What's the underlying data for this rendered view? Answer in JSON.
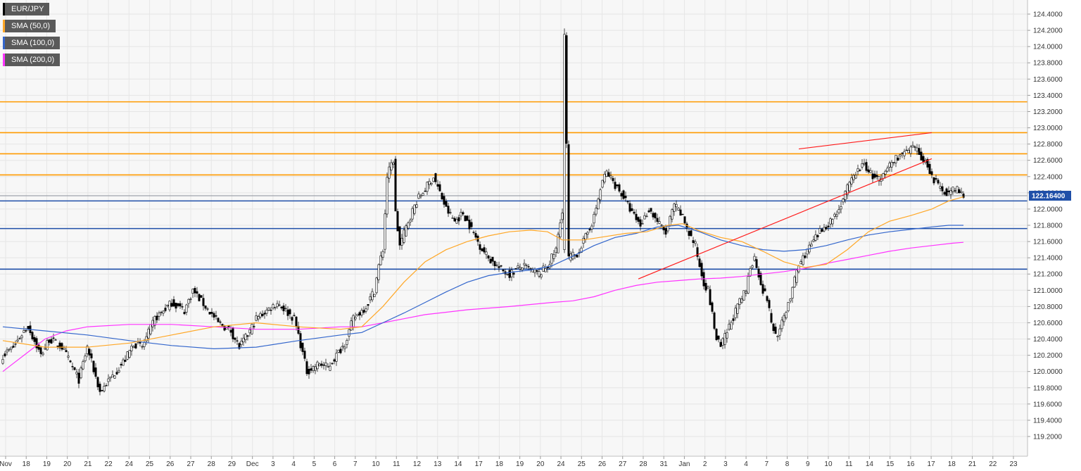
{
  "colors": {
    "background": "#f7f7f7",
    "grid": "#e6e6e6",
    "resistance": "#ff9a00",
    "support": "#1f4fa8",
    "trend": "#ff1a1a",
    "sma50": "#ffa726",
    "sma100": "#3366cc",
    "sma200": "#ff33ff",
    "bull": "#ffffff",
    "bear": "#000000",
    "priceBadge": "#1f4fa8",
    "currentPrice": "#8a8f99"
  },
  "chart_data": {
    "type": "candlestick",
    "symbol": "EUR/JPY",
    "legend": [
      {
        "label": "EUR/JPY",
        "color": "#000000"
      },
      {
        "label": "SMA (50,0)",
        "color": "#ffa726"
      },
      {
        "label": "SMA (100,0)",
        "color": "#3366cc"
      },
      {
        "label": "SMA (200,0)",
        "color": "#ff33ff"
      }
    ],
    "legend_position": "top-left",
    "grid": true,
    "ylim": [
      119.2,
      124.5
    ],
    "y_ticks": [
      "124.4000",
      "124.2000",
      "124.0000",
      "123.8000",
      "123.6000",
      "123.4000",
      "123.2000",
      "123.0000",
      "122.8000",
      "122.6000",
      "122.4000",
      "122.2000",
      "122.0000",
      "121.8000",
      "121.6000",
      "121.4000",
      "121.2000",
      "121.0000",
      "120.8000",
      "120.6000",
      "120.4000",
      "120.2000",
      "120.0000",
      "119.8000",
      "119.6000",
      "119.4000",
      "119.2000"
    ],
    "x_ticks": [
      "Nov",
      "18",
      "19",
      "20",
      "21",
      "22",
      "24",
      "25",
      "26",
      "27",
      "28",
      "29",
      "Dec",
      "3",
      "4",
      "5",
      "6",
      "7",
      "10",
      "11",
      "12",
      "13",
      "14",
      "17",
      "18",
      "19",
      "20",
      "24",
      "25",
      "26",
      "27",
      "28",
      "31",
      "Jan",
      "2",
      "3",
      "4",
      "7",
      "8",
      "9",
      "10",
      "11",
      "14",
      "15",
      "16",
      "17",
      "18",
      "21",
      "22",
      "23"
    ],
    "current_price": "122.16400",
    "current_price_value": 122.164,
    "resistance_levels": [
      123.32,
      122.94,
      122.68,
      122.42
    ],
    "support_levels": [
      122.1,
      121.76,
      121.26
    ],
    "trend_lines": [
      {
        "from_index": 377,
        "from_value": 122.74,
        "to_index": 440,
        "to_value": 122.94
      },
      {
        "from_index": 301,
        "from_value": 121.14,
        "to_index": 440,
        "to_value": 122.62
      }
    ],
    "key_closes": [
      [
        0,
        120.2
      ],
      [
        5,
        120.3
      ],
      [
        10,
        120.5
      ],
      [
        12,
        120.55
      ],
      [
        18,
        120.2
      ],
      [
        22,
        120.4
      ],
      [
        28,
        120.3
      ],
      [
        36,
        119.9
      ],
      [
        40,
        120.3
      ],
      [
        46,
        119.75
      ],
      [
        52,
        119.95
      ],
      [
        58,
        120.15
      ],
      [
        62,
        120.35
      ],
      [
        66,
        120.3
      ],
      [
        72,
        120.65
      ],
      [
        80,
        120.85
      ],
      [
        86,
        120.75
      ],
      [
        90,
        121.0
      ],
      [
        96,
        120.8
      ],
      [
        102,
        120.6
      ],
      [
        108,
        120.5
      ],
      [
        112,
        120.3
      ],
      [
        116,
        120.45
      ],
      [
        120,
        120.65
      ],
      [
        130,
        120.85
      ],
      [
        136,
        120.7
      ],
      [
        138,
        120.65
      ],
      [
        140,
        120.45
      ],
      [
        144,
        120.0
      ],
      [
        150,
        120.1
      ],
      [
        154,
        120.05
      ],
      [
        158,
        120.2
      ],
      [
        162,
        120.35
      ],
      [
        166,
        120.65
      ],
      [
        172,
        120.8
      ],
      [
        174,
        120.9
      ],
      [
        176,
        121.0
      ],
      [
        178,
        121.3
      ],
      [
        180,
        121.5
      ],
      [
        182,
        122.4
      ],
      [
        184,
        122.55
      ],
      [
        185,
        122.6
      ],
      [
        186,
        121.95
      ],
      [
        188,
        121.55
      ],
      [
        192,
        121.85
      ],
      [
        196,
        122.1
      ],
      [
        200,
        122.25
      ],
      [
        204,
        122.4
      ],
      [
        207,
        122.2
      ],
      [
        210,
        122.0
      ],
      [
        214,
        121.85
      ],
      [
        218,
        121.95
      ],
      [
        220,
        121.85
      ],
      [
        222,
        121.75
      ],
      [
        226,
        121.55
      ],
      [
        230,
        121.4
      ],
      [
        236,
        121.25
      ],
      [
        240,
        121.2
      ],
      [
        246,
        121.3
      ],
      [
        250,
        121.25
      ],
      [
        254,
        121.2
      ],
      [
        258,
        121.3
      ],
      [
        262,
        121.5
      ],
      [
        265,
        122.0
      ],
      [
        266,
        124.15
      ],
      [
        268,
        121.4
      ],
      [
        272,
        121.45
      ],
      [
        276,
        121.65
      ],
      [
        280,
        121.9
      ],
      [
        284,
        122.35
      ],
      [
        286,
        122.45
      ],
      [
        290,
        122.3
      ],
      [
        294,
        122.15
      ],
      [
        298,
        121.95
      ],
      [
        302,
        121.8
      ],
      [
        306,
        122.0
      ],
      [
        310,
        121.85
      ],
      [
        314,
        121.7
      ],
      [
        318,
        122.05
      ],
      [
        322,
        121.9
      ],
      [
        325,
        121.7
      ],
      [
        328,
        121.55
      ],
      [
        330,
        121.3
      ],
      [
        332,
        121.1
      ],
      [
        334,
        121.0
      ],
      [
        336,
        120.7
      ],
      [
        338,
        120.4
      ],
      [
        340,
        120.3
      ],
      [
        344,
        120.55
      ],
      [
        348,
        120.8
      ],
      [
        350,
        120.9
      ],
      [
        352,
        121.0
      ],
      [
        354,
        121.3
      ],
      [
        356,
        121.4
      ],
      [
        358,
        121.2
      ],
      [
        360,
        121.0
      ],
      [
        362,
        120.9
      ],
      [
        364,
        120.6
      ],
      [
        366,
        120.45
      ],
      [
        368,
        120.5
      ],
      [
        372,
        120.85
      ],
      [
        374,
        121.0
      ],
      [
        376,
        121.25
      ],
      [
        380,
        121.45
      ],
      [
        384,
        121.6
      ],
      [
        388,
        121.75
      ],
      [
        392,
        121.85
      ],
      [
        396,
        122.0
      ],
      [
        400,
        122.25
      ],
      [
        404,
        122.45
      ],
      [
        408,
        122.55
      ],
      [
        412,
        122.4
      ],
      [
        416,
        122.35
      ],
      [
        420,
        122.55
      ],
      [
        424,
        122.65
      ],
      [
        428,
        122.7
      ],
      [
        432,
        122.75
      ],
      [
        436,
        122.6
      ],
      [
        438,
        122.55
      ],
      [
        440,
        122.4
      ],
      [
        444,
        122.25
      ],
      [
        448,
        122.2
      ],
      [
        452,
        122.25
      ],
      [
        455,
        122.16
      ]
    ],
    "sma50": [
      [
        0,
        120.38
      ],
      [
        20,
        120.3
      ],
      [
        40,
        120.3
      ],
      [
        60,
        120.35
      ],
      [
        80,
        120.45
      ],
      [
        100,
        120.55
      ],
      [
        120,
        120.6
      ],
      [
        140,
        120.55
      ],
      [
        160,
        120.52
      ],
      [
        170,
        120.55
      ],
      [
        180,
        120.8
      ],
      [
        190,
        121.1
      ],
      [
        200,
        121.35
      ],
      [
        210,
        121.5
      ],
      [
        220,
        121.6
      ],
      [
        230,
        121.67
      ],
      [
        240,
        121.72
      ],
      [
        250,
        121.74
      ],
      [
        258,
        121.72
      ],
      [
        265,
        121.62
      ],
      [
        275,
        121.62
      ],
      [
        285,
        121.66
      ],
      [
        295,
        121.7
      ],
      [
        305,
        121.72
      ],
      [
        315,
        121.8
      ],
      [
        322,
        121.82
      ],
      [
        330,
        121.73
      ],
      [
        340,
        121.65
      ],
      [
        350,
        121.6
      ],
      [
        360,
        121.48
      ],
      [
        370,
        121.35
      ],
      [
        380,
        121.28
      ],
      [
        390,
        121.32
      ],
      [
        400,
        121.5
      ],
      [
        410,
        121.72
      ],
      [
        420,
        121.85
      ],
      [
        430,
        121.92
      ],
      [
        440,
        122.0
      ],
      [
        448,
        122.1
      ],
      [
        455,
        122.15
      ]
    ],
    "sma100": [
      [
        0,
        120.55
      ],
      [
        20,
        120.5
      ],
      [
        40,
        120.45
      ],
      [
        60,
        120.38
      ],
      [
        80,
        120.32
      ],
      [
        100,
        120.28
      ],
      [
        120,
        120.3
      ],
      [
        140,
        120.38
      ],
      [
        160,
        120.45
      ],
      [
        170,
        120.48
      ],
      [
        180,
        120.6
      ],
      [
        190,
        120.72
      ],
      [
        200,
        120.85
      ],
      [
        210,
        120.98
      ],
      [
        220,
        121.1
      ],
      [
        230,
        121.18
      ],
      [
        240,
        121.22
      ],
      [
        250,
        121.25
      ],
      [
        260,
        121.3
      ],
      [
        270,
        121.42
      ],
      [
        280,
        121.55
      ],
      [
        290,
        121.65
      ],
      [
        300,
        121.7
      ],
      [
        310,
        121.78
      ],
      [
        320,
        121.8
      ],
      [
        330,
        121.72
      ],
      [
        340,
        121.62
      ],
      [
        350,
        121.55
      ],
      [
        360,
        121.5
      ],
      [
        370,
        121.48
      ],
      [
        380,
        121.5
      ],
      [
        390,
        121.55
      ],
      [
        400,
        121.62
      ],
      [
        410,
        121.68
      ],
      [
        420,
        121.72
      ],
      [
        430,
        121.75
      ],
      [
        440,
        121.78
      ],
      [
        448,
        121.8
      ],
      [
        455,
        121.8
      ]
    ],
    "sma200": [
      [
        0,
        120.0
      ],
      [
        10,
        120.2
      ],
      [
        20,
        120.4
      ],
      [
        30,
        120.5
      ],
      [
        40,
        120.55
      ],
      [
        60,
        120.58
      ],
      [
        80,
        120.58
      ],
      [
        100,
        120.55
      ],
      [
        120,
        120.52
      ],
      [
        140,
        120.52
      ],
      [
        160,
        120.55
      ],
      [
        170,
        120.55
      ],
      [
        180,
        120.6
      ],
      [
        190,
        120.65
      ],
      [
        200,
        120.7
      ],
      [
        210,
        120.73
      ],
      [
        220,
        120.76
      ],
      [
        240,
        120.8
      ],
      [
        260,
        120.85
      ],
      [
        270,
        120.87
      ],
      [
        280,
        120.92
      ],
      [
        290,
        121.0
      ],
      [
        300,
        121.06
      ],
      [
        310,
        121.1
      ],
      [
        320,
        121.12
      ],
      [
        330,
        121.14
      ],
      [
        340,
        121.15
      ],
      [
        350,
        121.17
      ],
      [
        360,
        121.2
      ],
      [
        370,
        121.23
      ],
      [
        380,
        121.27
      ],
      [
        390,
        121.33
      ],
      [
        400,
        121.38
      ],
      [
        410,
        121.43
      ],
      [
        420,
        121.48
      ],
      [
        430,
        121.52
      ],
      [
        440,
        121.55
      ],
      [
        450,
        121.58
      ],
      [
        455,
        121.59
      ]
    ]
  }
}
